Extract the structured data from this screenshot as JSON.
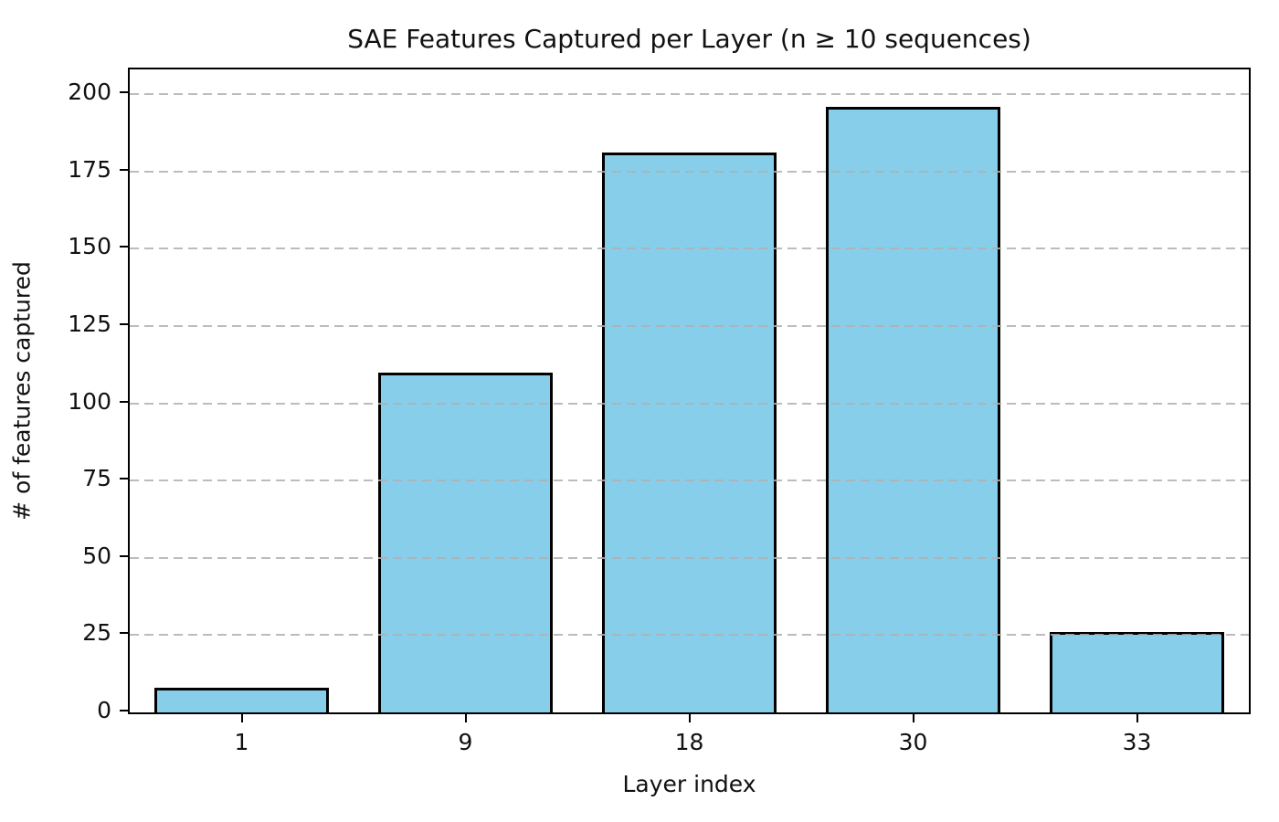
{
  "chart_data": {
    "type": "bar",
    "title": "SAE Features Captured per Layer (n ≥ 10 sequences)",
    "xlabel": "Layer index",
    "ylabel": "# of features captured",
    "categories": [
      "1",
      "9",
      "18",
      "30",
      "33"
    ],
    "values": [
      8,
      110,
      181,
      196,
      26
    ],
    "yticks": [
      0,
      25,
      50,
      75,
      100,
      125,
      150,
      175,
      200
    ],
    "ylim": [
      0,
      208
    ],
    "grid": "horizontal-dashed-over-bars",
    "legend": "none",
    "colors": {
      "bar_fill": "#87CEEB",
      "bar_edge": "#000000",
      "gridline": "#b0b0b0",
      "spine": "#000000",
      "text": "#111111",
      "background": "#ffffff"
    }
  }
}
